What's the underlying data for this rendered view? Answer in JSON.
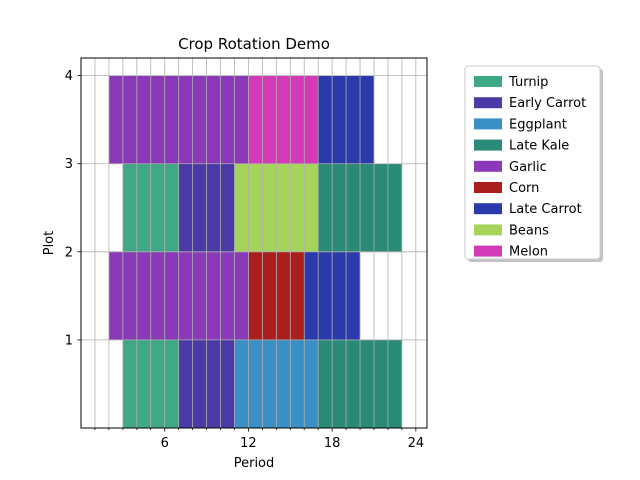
{
  "chart_data": {
    "type": "bar",
    "orientation": "horizontal-stacked-grid",
    "title": "Crop Rotation Demo",
    "xlabel": "Period",
    "ylabel": "Plot",
    "xlim": [
      0,
      24.8
    ],
    "ylim": [
      0,
      4.2
    ],
    "xticks": [
      6,
      12,
      18,
      24
    ],
    "yticks": [
      1,
      2,
      3,
      4
    ],
    "legend_position": "upper-right-outside",
    "crops": [
      {
        "name": "Turnip",
        "color": "#3fa886"
      },
      {
        "name": "Early Carrot",
        "color": "#4a3aa6"
      },
      {
        "name": "Eggplant",
        "color": "#3a8fc6"
      },
      {
        "name": "Late Kale",
        "color": "#2a8a78"
      },
      {
        "name": "Garlic",
        "color": "#8a3ab8"
      },
      {
        "name": "Corn",
        "color": "#aa1e1e"
      },
      {
        "name": "Late Carrot",
        "color": "#2a3aaa"
      },
      {
        "name": "Beans",
        "color": "#a6d45a"
      },
      {
        "name": "Melon",
        "color": "#d23ab8"
      }
    ],
    "plantings": [
      {
        "plot_band": [
          0,
          1
        ],
        "crop": "Turnip",
        "start": 3,
        "end": 7
      },
      {
        "plot_band": [
          0,
          1
        ],
        "crop": "Early Carrot",
        "start": 7,
        "end": 11
      },
      {
        "plot_band": [
          0,
          1
        ],
        "crop": "Eggplant",
        "start": 11,
        "end": 17
      },
      {
        "plot_band": [
          0,
          1
        ],
        "crop": "Late Kale",
        "start": 17,
        "end": 23
      },
      {
        "plot_band": [
          1,
          2
        ],
        "crop": "Garlic",
        "start": 2,
        "end": 12
      },
      {
        "plot_band": [
          1,
          2
        ],
        "crop": "Corn",
        "start": 12,
        "end": 16
      },
      {
        "plot_band": [
          1,
          2
        ],
        "crop": "Late Carrot",
        "start": 16,
        "end": 20
      },
      {
        "plot_band": [
          2,
          3
        ],
        "crop": "Turnip",
        "start": 3,
        "end": 7
      },
      {
        "plot_band": [
          2,
          3
        ],
        "crop": "Early Carrot",
        "start": 7,
        "end": 11
      },
      {
        "plot_band": [
          2,
          3
        ],
        "crop": "Beans",
        "start": 11,
        "end": 17
      },
      {
        "plot_band": [
          2,
          3
        ],
        "crop": "Late Kale",
        "start": 17,
        "end": 23
      },
      {
        "plot_band": [
          3,
          4
        ],
        "crop": "Garlic",
        "start": 2,
        "end": 12
      },
      {
        "plot_band": [
          3,
          4
        ],
        "crop": "Melon",
        "start": 12,
        "end": 17
      },
      {
        "plot_band": [
          3,
          4
        ],
        "crop": "Late Carrot",
        "start": 17,
        "end": 21
      }
    ],
    "grid": true
  }
}
